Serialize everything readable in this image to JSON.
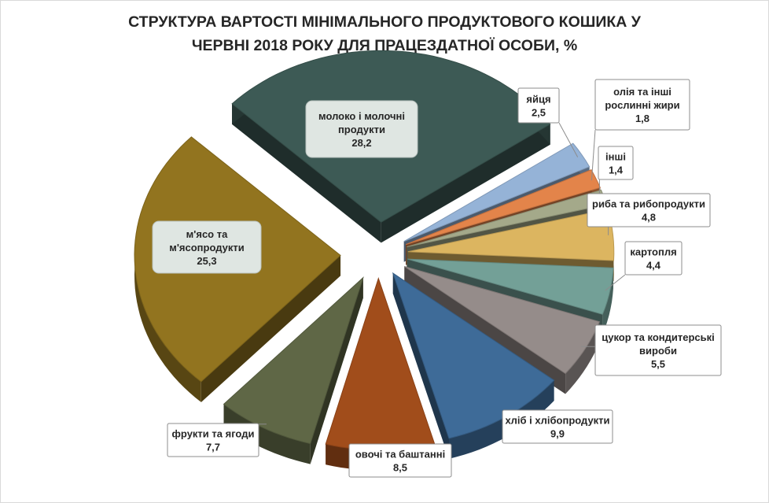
{
  "chart_data": {
    "type": "pie",
    "title_lines": [
      "СТРУКТУРА ВАРТОСТІ МІНІМАЛЬНОГО ПРОДУКТОВОГО  КОШИКА У",
      "ЧЕРВНІ 2018  РОКУ ДЛЯ ПРАЦЕЗДАТНОЇ ОСОБИ, %"
    ],
    "legend": "none",
    "exploded": true,
    "style": "3d",
    "slices": [
      {
        "label": "молоко і молочні продукти",
        "label_lines": [
          "молоко і молочні",
          "продукти"
        ],
        "value": 28.2,
        "value_text": "28,2",
        "color": "#3d5a55",
        "label_style": "inside"
      },
      {
        "label": "яйця",
        "label_lines": [
          "яйця"
        ],
        "value": 2.5,
        "value_text": "2,5",
        "color": "#95b3d7",
        "label_style": "callout"
      },
      {
        "label": "олія та інші рослинні жири",
        "label_lines": [
          "олія та інші",
          "рослинні жири"
        ],
        "value": 1.8,
        "value_text": "1,8",
        "color": "#e3844a",
        "label_style": "callout"
      },
      {
        "label": "інші",
        "label_lines": [
          "інші"
        ],
        "value": 1.4,
        "value_text": "1,4",
        "color": "#a4a98a",
        "label_style": "callout"
      },
      {
        "label": "риба та рибопродукти",
        "label_lines": [
          "риба та рибопродукти"
        ],
        "value": 4.8,
        "value_text": "4,8",
        "color": "#dcb560",
        "label_style": "callout"
      },
      {
        "label": "картопля",
        "label_lines": [
          "картопля"
        ],
        "value": 4.4,
        "value_text": "4,4",
        "color": "#73a097",
        "label_style": "callout"
      },
      {
        "label": "цукор та кондитерські вироби",
        "label_lines": [
          "цукор та кондитерські",
          "вироби"
        ],
        "value": 5.5,
        "value_text": "5,5",
        "color": "#958c8a",
        "label_style": "callout"
      },
      {
        "label": "хліб і хлібопродукти",
        "label_lines": [
          "хліб і хлібопродукти"
        ],
        "value": 9.9,
        "value_text": "9,9",
        "color": "#3e6b98",
        "label_style": "callout"
      },
      {
        "label": "овочі та баштанні",
        "label_lines": [
          "овочі та баштанні"
        ],
        "value": 8.5,
        "value_text": "8,5",
        "color": "#a14d1b",
        "label_style": "callout"
      },
      {
        "label": "фрукти та ягоди",
        "label_lines": [
          "фрукти та ягоди"
        ],
        "value": 7.7,
        "value_text": "7,7",
        "color": "#5f6746",
        "label_style": "callout"
      },
      {
        "label": "м'ясо та м'ясопродукти",
        "label_lines": [
          "м'ясо та",
          "м'ясопродукти"
        ],
        "value": 25.3,
        "value_text": "25,3",
        "color": "#92741f",
        "label_style": "inside"
      }
    ]
  }
}
